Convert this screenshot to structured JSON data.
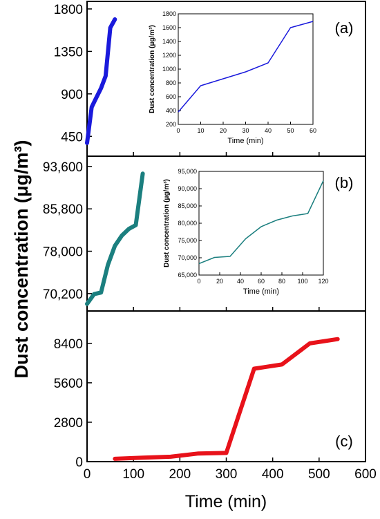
{
  "figure": {
    "ylabel": "Dust concentration (μg/m³)",
    "xlabel": "Time (min)"
  },
  "chart_data": [
    {
      "panel": "(a)",
      "type": "line",
      "color": "#1a1adc",
      "x": [
        0,
        10,
        20,
        30,
        40,
        50,
        60
      ],
      "y": [
        380,
        760,
        860,
        960,
        1090,
        1600,
        1690
      ],
      "xlim": [
        0,
        600
      ],
      "ylim": [
        240,
        1880
      ],
      "yticks": [
        "450",
        "900",
        "1350",
        "1800"
      ],
      "ytick_values": [
        450,
        900,
        1350,
        1800
      ],
      "inset": {
        "xlabel": "Time (min)",
        "ylabel": "Dust concentration (μg/m³)",
        "xlim": [
          0,
          60
        ],
        "ylim": [
          200,
          1800
        ],
        "xticks": [
          "0",
          "10",
          "20",
          "30",
          "40",
          "50",
          "60"
        ],
        "xtick_values": [
          0,
          10,
          20,
          30,
          40,
          50,
          60
        ],
        "yticks": [
          "200",
          "400",
          "600",
          "800",
          "1000",
          "1200",
          "1400",
          "1600",
          "1800"
        ],
        "ytick_values": [
          200,
          400,
          600,
          800,
          1000,
          1200,
          1400,
          1600,
          1800
        ]
      }
    },
    {
      "panel": "(b)",
      "type": "line",
      "color": "#1b7f7f",
      "x": [
        0,
        15,
        30,
        45,
        60,
        75,
        90,
        105,
        120
      ],
      "y": [
        68300,
        70100,
        70400,
        75500,
        79000,
        80900,
        82100,
        82800,
        92300
      ],
      "xlim": [
        0,
        600
      ],
      "ylim": [
        67000,
        95500
      ],
      "yticks": [
        "70,200",
        "78,000",
        "85,800",
        "93,600"
      ],
      "ytick_values": [
        70200,
        78000,
        85800,
        93600
      ],
      "inset": {
        "xlabel": "Time (min)",
        "ylabel": "Dust concentration (μg/m³)",
        "xlim": [
          0,
          120
        ],
        "ylim": [
          65000,
          95000
        ],
        "xticks": [
          "0",
          "20",
          "40",
          "60",
          "80",
          "100",
          "120"
        ],
        "xtick_values": [
          0,
          20,
          40,
          60,
          80,
          100,
          120
        ],
        "yticks": [
          "65,000",
          "70,000",
          "75,000",
          "80,000",
          "85,000",
          "90,000",
          "95,000"
        ],
        "ytick_values": [
          65000,
          70000,
          75000,
          80000,
          85000,
          90000,
          95000
        ]
      }
    },
    {
      "panel": "(c)",
      "type": "line",
      "color": "#e8121a",
      "x": [
        60,
        120,
        180,
        240,
        300,
        360,
        420,
        480,
        540
      ],
      "y": [
        200,
        280,
        350,
        580,
        620,
        6600,
        6900,
        8400,
        8700
      ],
      "xlim": [
        0,
        600
      ],
      "ylim": [
        0,
        10700
      ],
      "yticks": [
        "0",
        "2800",
        "5600",
        "8400"
      ],
      "ytick_values": [
        0,
        2800,
        5600,
        8400
      ],
      "xticks": [
        "0",
        "100",
        "200",
        "300",
        "400",
        "500",
        "600"
      ],
      "xtick_values": [
        0,
        100,
        200,
        300,
        400,
        500,
        600
      ]
    }
  ]
}
